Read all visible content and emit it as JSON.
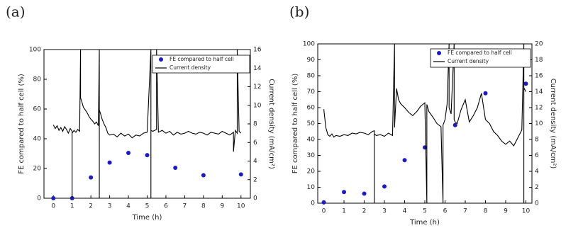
{
  "chart_data": [
    {
      "type": "combo",
      "panel_label": "(a)",
      "xlabel": "Time (h)",
      "ylabel": "FE compared to half cell (%)",
      "y2label": "Current density (mA/cm²)",
      "xlim": [
        -0.5,
        10.5
      ],
      "xticks": [
        0,
        1,
        2,
        3,
        4,
        5,
        6,
        7,
        8,
        9,
        10
      ],
      "ylim": [
        0,
        100
      ],
      "yticks": [
        0,
        20,
        40,
        60,
        80,
        100
      ],
      "y2lim": [
        0,
        16
      ],
      "y2ticks": [
        0,
        2,
        4,
        6,
        8,
        10,
        12,
        14,
        16
      ],
      "legend": "upper right",
      "series": [
        {
          "name": "FE compared to half cell",
          "kind": "scatter",
          "color": "#1a1acc",
          "x": [
            0,
            1,
            2,
            3,
            4,
            5,
            6.5,
            8,
            10
          ],
          "values": [
            0,
            0,
            14,
            24,
            30.5,
            29,
            20.5,
            15.5,
            16
          ]
        },
        {
          "name": "Current density",
          "kind": "line",
          "axis": "y2",
          "color": "#000000",
          "x": [
            0,
            0.1,
            0.2,
            0.3,
            0.4,
            0.5,
            0.6,
            0.7,
            0.8,
            0.9,
            1.0,
            1.0,
            1.0,
            1.1,
            1.2,
            1.3,
            1.4,
            1.45,
            1.45,
            1.5,
            1.6,
            1.7,
            1.8,
            1.9,
            2.0,
            2.1,
            2.2,
            2.3,
            2.4,
            2.45,
            2.45,
            2.45,
            2.5,
            2.6,
            2.7,
            2.8,
            2.9,
            3.0,
            3.2,
            3.4,
            3.6,
            3.8,
            4.0,
            4.2,
            4.4,
            4.6,
            4.8,
            5.0,
            5.2,
            5.2,
            5.2,
            5.3,
            5.5,
            5.5,
            5.6,
            5.8,
            6.0,
            6.2,
            6.4,
            6.6,
            6.8,
            7.0,
            7.2,
            7.4,
            7.6,
            7.8,
            8.0,
            8.2,
            8.4,
            8.6,
            8.8,
            9.0,
            9.2,
            9.4,
            9.6,
            9.6,
            9.7,
            9.8,
            9.8,
            9.9,
            10.0
          ],
          "values": [
            7.9,
            7.5,
            7.8,
            7.3,
            7.6,
            7.2,
            7.7,
            7.4,
            7.0,
            7.5,
            7.2,
            0,
            7.0,
            7.3,
            7.1,
            7.4,
            7.2,
            16,
            10.8,
            10.5,
            9.8,
            9.5,
            9.2,
            8.8,
            8.5,
            8.3,
            8.0,
            8.2,
            7.8,
            16,
            0,
            9.5,
            9.2,
            8.5,
            8.0,
            7.6,
            7.0,
            6.8,
            6.9,
            6.6,
            7.0,
            6.7,
            6.9,
            6.5,
            6.8,
            6.7,
            7.0,
            7.1,
            16,
            0,
            7.3,
            7.2,
            7.4,
            16,
            7.1,
            7.3,
            7.0,
            7.2,
            6.8,
            7.1,
            6.9,
            7.0,
            7.2,
            7.0,
            6.9,
            7.1,
            7.0,
            6.8,
            7.1,
            7.0,
            6.9,
            7.2,
            7.0,
            6.8,
            7.1,
            5.0,
            7.3,
            7.0,
            16,
            7.2,
            7.0
          ]
        }
      ]
    },
    {
      "type": "combo",
      "panel_label": "(b)",
      "xlabel": "Time (h)",
      "ylabel": "FE compared to half cell (%)",
      "y2label": "Current density (mA/cm²)",
      "xlim": [
        -0.3,
        10.3
      ],
      "xticks": [
        0,
        1,
        2,
        3,
        4,
        5,
        6,
        7,
        8,
        9,
        10
      ],
      "ylim": [
        0,
        100
      ],
      "yticks": [
        0,
        10,
        20,
        30,
        40,
        50,
        60,
        70,
        80,
        90,
        100
      ],
      "y2lim": [
        0,
        20
      ],
      "y2ticks": [
        0,
        2,
        4,
        6,
        8,
        10,
        12,
        14,
        16,
        18,
        20
      ],
      "legend": "upper right",
      "series": [
        {
          "name": "FE compared to half cell",
          "kind": "scatter",
          "color": "#1a1acc",
          "x": [
            0,
            1,
            2,
            3,
            4,
            5,
            6.5,
            8,
            10
          ],
          "values": [
            0.5,
            7,
            6,
            10.5,
            27,
            35,
            49,
            69,
            75
          ]
        },
        {
          "name": "Current density",
          "kind": "line",
          "axis": "y2",
          "color": "#000000",
          "x": [
            0,
            0.1,
            0.2,
            0.3,
            0.4,
            0.5,
            0.6,
            0.8,
            1.0,
            1.2,
            1.4,
            1.6,
            1.8,
            2.0,
            2.2,
            2.4,
            2.5,
            2.5,
            2.5,
            2.6,
            2.8,
            3.0,
            3.2,
            3.4,
            3.5,
            3.5,
            3.6,
            3.7,
            3.8,
            4.0,
            4.2,
            4.4,
            4.6,
            4.8,
            5.0,
            5.1,
            5.1,
            5.2,
            5.4,
            5.6,
            5.8,
            5.9,
            5.9,
            6.0,
            6.1,
            6.2,
            6.2,
            6.3,
            6.45,
            6.45,
            6.5,
            6.6,
            6.8,
            7.0,
            7.2,
            7.4,
            7.6,
            7.8,
            8.0,
            8.2,
            8.4,
            8.6,
            8.8,
            9.0,
            9.2,
            9.4,
            9.6,
            9.8,
            9.9,
            9.9,
            9.9,
            10.0
          ],
          "values": [
            11.8,
            9.5,
            8.6,
            8.4,
            8.7,
            8.3,
            8.5,
            8.4,
            8.6,
            8.5,
            8.8,
            8.7,
            8.9,
            8.8,
            8.6,
            9.0,
            9.1,
            0,
            8.7,
            8.5,
            8.6,
            8.4,
            8.8,
            8.5,
            20,
            9.5,
            14.4,
            13.0,
            12.5,
            12.0,
            11.4,
            11.0,
            11.5,
            12.2,
            12.6,
            0,
            12.4,
            11.5,
            10.8,
            10.0,
            9.6,
            0,
            9.8,
            10.5,
            12.4,
            20,
            12.0,
            11.2,
            20,
            10.5,
            10.2,
            10.0,
            11.8,
            13.0,
            10.2,
            11.0,
            12.0,
            13.8,
            10.5,
            10.0,
            9.0,
            8.5,
            7.8,
            7.4,
            7.8,
            7.2,
            8.2,
            9.2,
            20,
            0,
            14.5,
            14.0
          ]
        }
      ]
    }
  ]
}
